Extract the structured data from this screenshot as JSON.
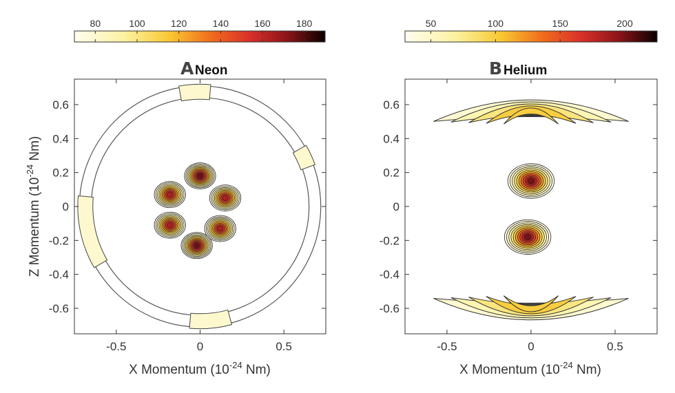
{
  "chart_data": [
    {
      "type": "heatmap",
      "panel_letter": "A",
      "title": "Neon",
      "xlabel_main": "X Momentum (10",
      "xlabel_exp": "-24",
      "xlabel_end": " Nm)",
      "ylabel_main": "Z Momentum (10",
      "ylabel_exp": "-24",
      "ylabel_end": " Nm)",
      "xlim": [
        -0.75,
        0.75
      ],
      "ylim": [
        -0.75,
        0.75
      ],
      "xticks": [
        -0.5,
        0,
        0.5
      ],
      "xtick_labels": [
        "-0.5",
        "0",
        "0.5"
      ],
      "yticks": [
        0.6,
        0.4,
        0.2,
        0,
        -0.2,
        -0.4,
        -0.6
      ],
      "ytick_labels": [
        "0.6",
        "0.4",
        "0.2",
        "0",
        "-0.2",
        "-0.4",
        "-0.6"
      ],
      "colorbar": {
        "range": [
          70,
          190
        ],
        "ticks": [
          80,
          100,
          120,
          140,
          160,
          180
        ],
        "tick_labels": [
          "80",
          "100",
          "120",
          "140",
          "160",
          "180"
        ]
      },
      "contour_levels": [
        72,
        80,
        92,
        104,
        116,
        128,
        140,
        152,
        164,
        176
      ],
      "features": [
        {
          "shape": "petal-lobe",
          "x": 0.0,
          "y": 0.18,
          "peak": 185
        },
        {
          "shape": "petal-lobe",
          "x": 0.15,
          "y": 0.05,
          "peak": 172
        },
        {
          "shape": "petal-lobe",
          "x": 0.12,
          "y": -0.13,
          "peak": 175
        },
        {
          "shape": "petal-lobe",
          "x": -0.02,
          "y": -0.23,
          "peak": 188
        },
        {
          "shape": "petal-lobe",
          "x": -0.18,
          "y": -0.11,
          "peak": 170
        },
        {
          "shape": "petal-lobe",
          "x": -0.18,
          "y": 0.07,
          "peak": 170
        },
        {
          "shape": "outer-ring",
          "radius": 0.72,
          "peak": 86
        }
      ]
    },
    {
      "type": "heatmap",
      "panel_letter": "B",
      "title": "Helium",
      "xlabel_main": "X Momentum (10",
      "xlabel_exp": "-24",
      "xlabel_end": " Nm)",
      "xlim": [
        -0.75,
        0.75
      ],
      "ylim": [
        -0.75,
        0.75
      ],
      "xticks": [
        -0.5,
        0,
        0.5
      ],
      "xtick_labels": [
        "-0.5",
        "0",
        "0.5"
      ],
      "yticks": [
        0.6,
        0.4,
        0.2,
        0,
        -0.2,
        -0.4,
        -0.6
      ],
      "ytick_labels": [
        "0.6",
        "0.4",
        "0.2",
        "0",
        "-0.2",
        "-0.4",
        "-0.6"
      ],
      "colorbar": {
        "range": [
          30,
          225
        ],
        "ticks": [
          50,
          100,
          150,
          200
        ],
        "tick_labels": [
          "50",
          "100",
          "150",
          "200"
        ]
      },
      "contour_levels": [
        35,
        45,
        60,
        80,
        100,
        120,
        140,
        160,
        180,
        200
      ],
      "features": [
        {
          "shape": "lobe",
          "x": 0.0,
          "y": 0.15,
          "peak": 222
        },
        {
          "shape": "lobe",
          "x": -0.02,
          "y": -0.18,
          "peak": 218
        },
        {
          "shape": "crescent-top",
          "y": 0.62,
          "peak": 80
        },
        {
          "shape": "crescent-bottom",
          "y": -0.66,
          "peak": 84
        }
      ]
    }
  ]
}
